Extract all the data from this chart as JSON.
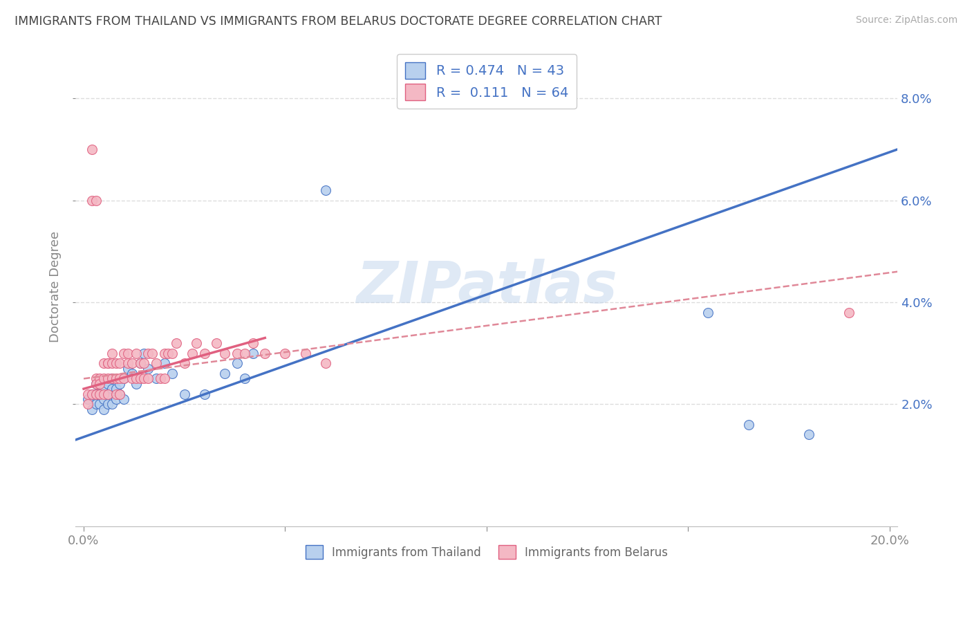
{
  "title": "IMMIGRANTS FROM THAILAND VS IMMIGRANTS FROM BELARUS DOCTORATE DEGREE CORRELATION CHART",
  "source": "Source: ZipAtlas.com",
  "ylabel": "Doctorate Degree",
  "legend_label1": "Immigrants from Thailand",
  "legend_label2": "Immigrants from Belarus",
  "R1": 0.474,
  "N1": 43,
  "R2": 0.111,
  "N2": 64,
  "xlim": [
    -0.002,
    0.202
  ],
  "ylim": [
    -0.004,
    0.09
  ],
  "xticks": [
    0.0,
    0.05,
    0.1,
    0.15,
    0.2
  ],
  "xtick_labels": [
    "0.0%",
    "",
    "",
    "",
    "20.0%"
  ],
  "yticks": [
    0.02,
    0.04,
    0.06,
    0.08
  ],
  "ytick_labels": [
    "2.0%",
    "4.0%",
    "6.0%",
    "8.0%"
  ],
  "color_blue": "#b8d0ee",
  "color_pink": "#f4b8c4",
  "color_blue_line": "#4472c4",
  "color_pink_line": "#e06080",
  "color_pink_dashed": "#e08898",
  "watermark": "ZIPatlas",
  "blue_scatter_x": [
    0.001,
    0.002,
    0.002,
    0.003,
    0.003,
    0.003,
    0.004,
    0.004,
    0.004,
    0.005,
    0.005,
    0.005,
    0.006,
    0.006,
    0.006,
    0.007,
    0.007,
    0.007,
    0.008,
    0.008,
    0.009,
    0.009,
    0.01,
    0.01,
    0.011,
    0.012,
    0.013,
    0.014,
    0.015,
    0.016,
    0.018,
    0.02,
    0.022,
    0.025,
    0.03,
    0.035,
    0.038,
    0.04,
    0.042,
    0.06,
    0.155,
    0.165,
    0.18
  ],
  "blue_scatter_y": [
    0.021,
    0.019,
    0.022,
    0.02,
    0.022,
    0.024,
    0.02,
    0.022,
    0.024,
    0.019,
    0.021,
    0.023,
    0.02,
    0.022,
    0.024,
    0.02,
    0.023,
    0.025,
    0.021,
    0.023,
    0.022,
    0.024,
    0.021,
    0.025,
    0.027,
    0.026,
    0.024,
    0.028,
    0.03,
    0.027,
    0.025,
    0.028,
    0.026,
    0.022,
    0.022,
    0.026,
    0.028,
    0.025,
    0.03,
    0.062,
    0.038,
    0.016,
    0.014
  ],
  "pink_scatter_x": [
    0.001,
    0.001,
    0.002,
    0.002,
    0.002,
    0.003,
    0.003,
    0.003,
    0.003,
    0.004,
    0.004,
    0.004,
    0.005,
    0.005,
    0.005,
    0.006,
    0.006,
    0.006,
    0.006,
    0.007,
    0.007,
    0.007,
    0.008,
    0.008,
    0.008,
    0.009,
    0.009,
    0.009,
    0.01,
    0.01,
    0.011,
    0.011,
    0.012,
    0.012,
    0.013,
    0.013,
    0.014,
    0.014,
    0.015,
    0.015,
    0.016,
    0.016,
    0.017,
    0.018,
    0.019,
    0.02,
    0.02,
    0.021,
    0.022,
    0.023,
    0.025,
    0.027,
    0.028,
    0.03,
    0.033,
    0.035,
    0.038,
    0.04,
    0.042,
    0.045,
    0.05,
    0.055,
    0.06,
    0.19
  ],
  "pink_scatter_y": [
    0.02,
    0.022,
    0.06,
    0.07,
    0.022,
    0.025,
    0.022,
    0.024,
    0.06,
    0.025,
    0.022,
    0.024,
    0.022,
    0.025,
    0.028,
    0.025,
    0.028,
    0.022,
    0.028,
    0.025,
    0.028,
    0.03,
    0.025,
    0.028,
    0.022,
    0.025,
    0.028,
    0.022,
    0.025,
    0.03,
    0.03,
    0.028,
    0.025,
    0.028,
    0.03,
    0.025,
    0.025,
    0.028,
    0.028,
    0.025,
    0.03,
    0.025,
    0.03,
    0.028,
    0.025,
    0.03,
    0.025,
    0.03,
    0.03,
    0.032,
    0.028,
    0.03,
    0.032,
    0.03,
    0.032,
    0.03,
    0.03,
    0.03,
    0.032,
    0.03,
    0.03,
    0.03,
    0.028,
    0.038
  ],
  "blue_line_x": [
    -0.002,
    0.202
  ],
  "blue_line_y": [
    0.013,
    0.07
  ],
  "pink_solid_line_x": [
    0.0,
    0.045
  ],
  "pink_solid_line_y": [
    0.023,
    0.033
  ],
  "pink_dashed_line_x": [
    0.0,
    0.202
  ],
  "pink_dashed_line_y": [
    0.025,
    0.046
  ]
}
